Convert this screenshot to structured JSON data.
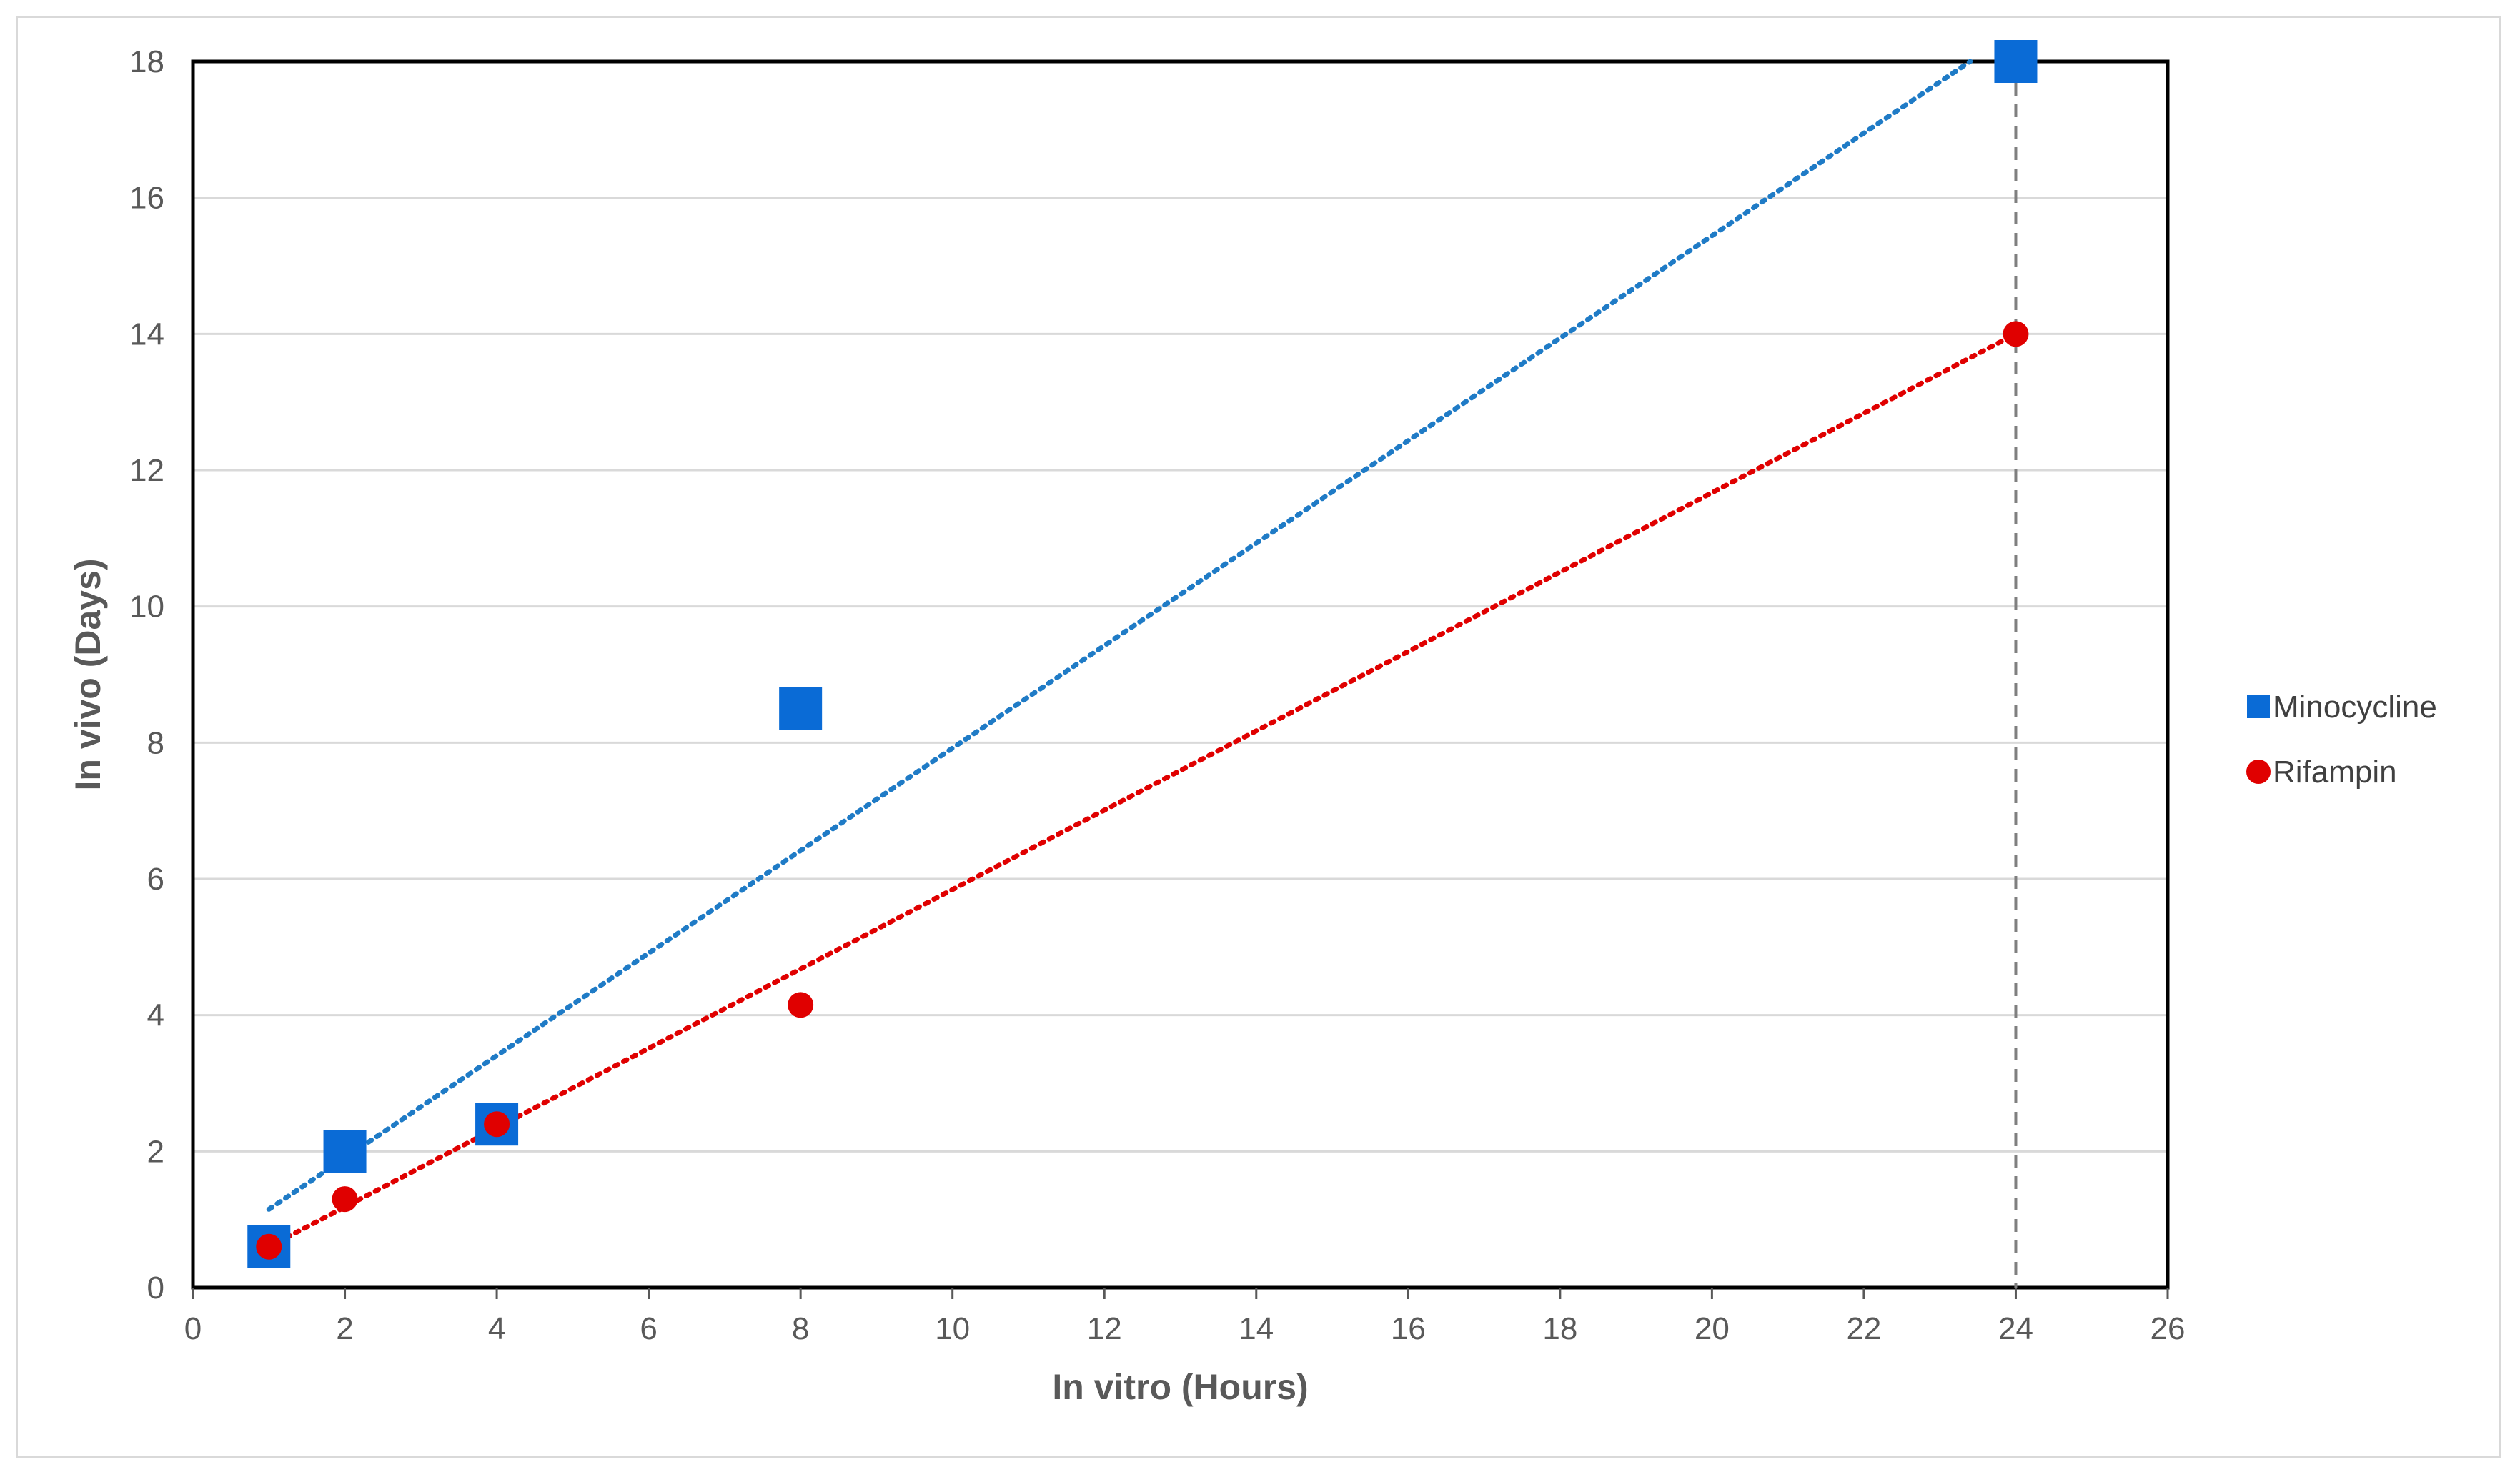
{
  "chart_data": {
    "type": "scatter",
    "xlabel": "In vitro (Hours)",
    "ylabel": "In vivo (Days)",
    "xlim": [
      0,
      26
    ],
    "ylim": [
      0,
      18
    ],
    "xticks": [
      0,
      2,
      4,
      6,
      8,
      10,
      12,
      14,
      16,
      18,
      20,
      22,
      24,
      26
    ],
    "yticks": [
      0,
      2,
      4,
      6,
      8,
      10,
      12,
      14,
      16,
      18
    ],
    "grid": "horizontal",
    "legend_position": "right",
    "reference_line": {
      "x": 24,
      "style": "dashed",
      "color": "#7f7f7f"
    },
    "series": [
      {
        "name": "Minocycline",
        "marker": "square",
        "color": "#0a6bd6",
        "x": [
          1,
          2,
          4,
          8,
          24
        ],
        "y": [
          0.6,
          2.0,
          2.4,
          8.5,
          18.0
        ],
        "trendline": {
          "type": "linear",
          "from": [
            1,
            1.15
          ],
          "to": [
            23.4,
            18.0
          ],
          "color": "#1f7bc6"
        }
      },
      {
        "name": "Rifampin",
        "marker": "circle",
        "color": "#e00000",
        "x": [
          1,
          2,
          4,
          8,
          24
        ],
        "y": [
          0.6,
          1.3,
          2.4,
          4.15,
          14.0
        ],
        "trendline": {
          "type": "linear",
          "from": [
            1,
            0.6
          ],
          "to": [
            24,
            14.0
          ],
          "color": "#e00000"
        }
      }
    ]
  }
}
